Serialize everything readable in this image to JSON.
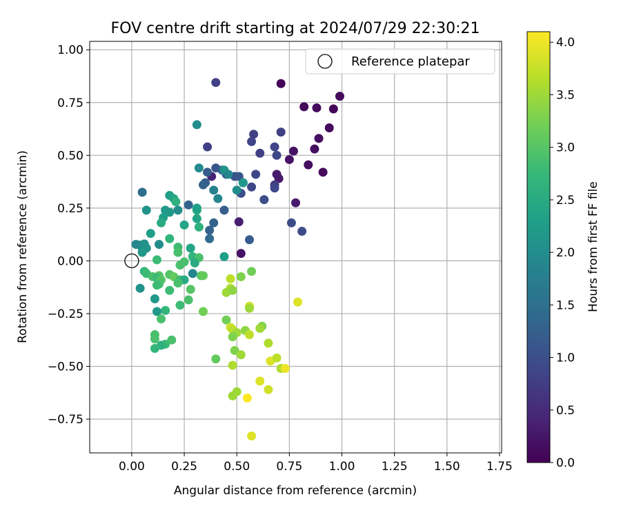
{
  "chart_data": {
    "type": "scatter",
    "title": "FOV centre drift starting at 2024/07/29 22:30:21",
    "xlabel": "Angular distance from reference (arcmin)",
    "ylabel": "Rotation from reference (arcmin)",
    "xlim": [
      -0.2,
      1.76
    ],
    "ylim": [
      -0.91,
      1.04
    ],
    "xticks": [
      0.0,
      0.25,
      0.5,
      0.75,
      1.0,
      1.25,
      1.5,
      1.75
    ],
    "xtick_labels": [
      "0.00",
      "0.25",
      "0.50",
      "0.75",
      "1.00",
      "1.25",
      "1.50",
      "1.75"
    ],
    "yticks": [
      -0.75,
      -0.5,
      -0.25,
      0.0,
      0.25,
      0.5,
      0.75,
      1.0
    ],
    "ytick_labels": [
      "−0.75",
      "−0.50",
      "−0.25",
      "0.00",
      "0.25",
      "0.50",
      "0.75",
      "1.00"
    ],
    "grid": true,
    "legend": {
      "label": "Reference platepar",
      "placement": "top-right"
    },
    "reference_point": {
      "x": 0.0,
      "y": 0.0
    },
    "colorbar": {
      "label": "Hours from first FF file",
      "range": [
        0.0,
        4.1
      ],
      "ticks": [
        0.0,
        0.5,
        1.0,
        1.5,
        2.0,
        2.5,
        3.0,
        3.5,
        4.0
      ],
      "tick_labels": [
        "0.0",
        "0.5",
        "1.0",
        "1.5",
        "2.0",
        "2.5",
        "3.0",
        "3.5",
        "4.0"
      ],
      "colormap": "viridis"
    },
    "points": [
      {
        "x": 0.71,
        "y": 0.84,
        "c": 0.05
      },
      {
        "x": 0.99,
        "y": 0.78,
        "c": 0.1
      },
      {
        "x": 0.82,
        "y": 0.73,
        "c": 0.1
      },
      {
        "x": 0.88,
        "y": 0.725,
        "c": 0.1
      },
      {
        "x": 0.96,
        "y": 0.72,
        "c": 0.05
      },
      {
        "x": 0.94,
        "y": 0.63,
        "c": 0.1
      },
      {
        "x": 0.89,
        "y": 0.58,
        "c": 0.15
      },
      {
        "x": 0.87,
        "y": 0.53,
        "c": 0.15
      },
      {
        "x": 0.77,
        "y": 0.52,
        "c": 0.2
      },
      {
        "x": 0.75,
        "y": 0.48,
        "c": 0.2
      },
      {
        "x": 0.84,
        "y": 0.455,
        "c": 0.15
      },
      {
        "x": 0.91,
        "y": 0.42,
        "c": 0.1
      },
      {
        "x": 0.69,
        "y": 0.41,
        "c": 0.3
      },
      {
        "x": 0.7,
        "y": 0.39,
        "c": 0.3
      },
      {
        "x": 0.78,
        "y": 0.275,
        "c": 0.3
      },
      {
        "x": 0.51,
        "y": 0.185,
        "c": 0.35
      },
      {
        "x": 0.52,
        "y": 0.035,
        "c": 0.2
      },
      {
        "x": 0.38,
        "y": 0.4,
        "c": 0.4
      },
      {
        "x": 0.4,
        "y": 0.845,
        "c": 0.8
      },
      {
        "x": 0.71,
        "y": 0.61,
        "c": 0.8
      },
      {
        "x": 0.58,
        "y": 0.6,
        "c": 0.8
      },
      {
        "x": 0.57,
        "y": 0.565,
        "c": 0.85
      },
      {
        "x": 0.68,
        "y": 0.54,
        "c": 0.85
      },
      {
        "x": 0.61,
        "y": 0.51,
        "c": 0.8
      },
      {
        "x": 0.36,
        "y": 0.54,
        "c": 0.8
      },
      {
        "x": 0.69,
        "y": 0.5,
        "c": 0.9
      },
      {
        "x": 0.59,
        "y": 0.41,
        "c": 0.9
      },
      {
        "x": 0.68,
        "y": 0.36,
        "c": 0.75
      },
      {
        "x": 0.68,
        "y": 0.345,
        "c": 0.9
      },
      {
        "x": 0.57,
        "y": 0.35,
        "c": 0.9
      },
      {
        "x": 0.52,
        "y": 0.32,
        "c": 1.0
      },
      {
        "x": 0.53,
        "y": 0.37,
        "c": 1.0
      },
      {
        "x": 0.49,
        "y": 0.4,
        "c": 1.0
      },
      {
        "x": 0.51,
        "y": 0.4,
        "c": 1.1
      },
      {
        "x": 0.4,
        "y": 0.44,
        "c": 1.1
      },
      {
        "x": 0.36,
        "y": 0.42,
        "c": 1.2
      },
      {
        "x": 0.45,
        "y": 0.41,
        "c": 1.15
      },
      {
        "x": 0.43,
        "y": 0.43,
        "c": 1.2
      },
      {
        "x": 0.35,
        "y": 0.37,
        "c": 1.2
      },
      {
        "x": 0.34,
        "y": 0.36,
        "c": 1.3
      },
      {
        "x": 0.63,
        "y": 0.29,
        "c": 1.0
      },
      {
        "x": 0.76,
        "y": 0.18,
        "c": 0.95
      },
      {
        "x": 0.81,
        "y": 0.14,
        "c": 0.95
      },
      {
        "x": 0.56,
        "y": 0.1,
        "c": 1.2
      },
      {
        "x": 0.44,
        "y": 0.24,
        "c": 1.2
      },
      {
        "x": 0.39,
        "y": 0.18,
        "c": 1.3
      },
      {
        "x": 0.37,
        "y": 0.145,
        "c": 1.3
      },
      {
        "x": 0.37,
        "y": 0.105,
        "c": 1.4
      },
      {
        "x": 0.27,
        "y": 0.265,
        "c": 1.3
      },
      {
        "x": 0.05,
        "y": 0.325,
        "c": 1.45
      },
      {
        "x": 0.32,
        "y": 0.44,
        "c": 1.95
      },
      {
        "x": 0.44,
        "y": 0.43,
        "c": 2.1
      },
      {
        "x": 0.46,
        "y": 0.41,
        "c": 1.9
      },
      {
        "x": 0.39,
        "y": 0.335,
        "c": 1.8
      },
      {
        "x": 0.41,
        "y": 0.295,
        "c": 1.9
      },
      {
        "x": 0.5,
        "y": 0.335,
        "c": 2.0
      },
      {
        "x": 0.53,
        "y": 0.37,
        "c": 2.2
      },
      {
        "x": 0.31,
        "y": 0.645,
        "c": 2.0
      },
      {
        "x": 0.18,
        "y": 0.31,
        "c": 2.3
      },
      {
        "x": 0.2,
        "y": 0.295,
        "c": 2.4
      },
      {
        "x": 0.21,
        "y": 0.28,
        "c": 2.6
      },
      {
        "x": 0.16,
        "y": 0.24,
        "c": 2.2
      },
      {
        "x": 0.18,
        "y": 0.23,
        "c": 2.2
      },
      {
        "x": 0.07,
        "y": 0.24,
        "c": 2.1
      },
      {
        "x": 0.22,
        "y": 0.24,
        "c": 2.0
      },
      {
        "x": 0.15,
        "y": 0.205,
        "c": 2.3
      },
      {
        "x": 0.14,
        "y": 0.18,
        "c": 2.5
      },
      {
        "x": 0.25,
        "y": 0.17,
        "c": 2.4
      },
      {
        "x": 0.31,
        "y": 0.24,
        "c": 2.5
      },
      {
        "x": 0.31,
        "y": 0.25,
        "c": 2.3
      },
      {
        "x": 0.31,
        "y": 0.2,
        "c": 2.4
      },
      {
        "x": 0.32,
        "y": 0.16,
        "c": 2.6
      },
      {
        "x": 0.09,
        "y": 0.13,
        "c": 2.3
      },
      {
        "x": 0.04,
        "y": 0.075,
        "c": 1.9
      },
      {
        "x": 0.06,
        "y": 0.08,
        "c": 2.1
      },
      {
        "x": 0.02,
        "y": 0.078,
        "c": 1.9
      },
      {
        "x": 0.05,
        "y": 0.06,
        "c": 2.0
      },
      {
        "x": 0.07,
        "y": 0.06,
        "c": 2.1
      },
      {
        "x": 0.13,
        "y": 0.078,
        "c": 2.0
      },
      {
        "x": 0.18,
        "y": 0.105,
        "c": 2.7
      },
      {
        "x": 0.05,
        "y": 0.04,
        "c": 2.2
      },
      {
        "x": 0.28,
        "y": 0.06,
        "c": 2.4
      },
      {
        "x": 0.22,
        "y": 0.065,
        "c": 2.8
      },
      {
        "x": 0.22,
        "y": 0.04,
        "c": 2.9
      },
      {
        "x": 0.29,
        "y": 0.02,
        "c": 2.7
      },
      {
        "x": 0.32,
        "y": 0.015,
        "c": 2.9
      },
      {
        "x": 0.44,
        "y": 0.02,
        "c": 2.3
      },
      {
        "x": 0.12,
        "y": 0.005,
        "c": 2.8
      },
      {
        "x": 0.25,
        "y": -0.005,
        "c": 2.9
      },
      {
        "x": 0.3,
        "y": -0.01,
        "c": 2.5
      },
      {
        "x": 0.23,
        "y": -0.02,
        "c": 2.9
      },
      {
        "x": 0.06,
        "y": -0.05,
        "c": 2.7
      },
      {
        "x": 0.07,
        "y": -0.06,
        "c": 2.8
      },
      {
        "x": 0.13,
        "y": -0.07,
        "c": 3.0
      },
      {
        "x": 0.1,
        "y": -0.075,
        "c": 2.9
      },
      {
        "x": 0.12,
        "y": -0.08,
        "c": 2.8
      },
      {
        "x": 0.14,
        "y": -0.09,
        "c": 3.0
      },
      {
        "x": 0.18,
        "y": -0.065,
        "c": 3.0
      },
      {
        "x": 0.2,
        "y": -0.075,
        "c": 3.1
      },
      {
        "x": 0.23,
        "y": -0.09,
        "c": 2.8
      },
      {
        "x": 0.25,
        "y": -0.09,
        "c": 2.5
      },
      {
        "x": 0.29,
        "y": -0.06,
        "c": 1.9
      },
      {
        "x": 0.33,
        "y": -0.07,
        "c": 3.0
      },
      {
        "x": 0.34,
        "y": -0.07,
        "c": 3.1
      },
      {
        "x": 0.22,
        "y": -0.105,
        "c": 2.9
      },
      {
        "x": 0.13,
        "y": -0.11,
        "c": 2.9
      },
      {
        "x": 0.12,
        "y": -0.115,
        "c": 2.8
      },
      {
        "x": 0.04,
        "y": -0.13,
        "c": 2.1
      },
      {
        "x": 0.18,
        "y": -0.14,
        "c": 2.8
      },
      {
        "x": 0.28,
        "y": -0.135,
        "c": 3.0
      },
      {
        "x": 0.11,
        "y": -0.18,
        "c": 2.2
      },
      {
        "x": 0.27,
        "y": -0.185,
        "c": 2.9
      },
      {
        "x": 0.23,
        "y": -0.21,
        "c": 2.8
      },
      {
        "x": 0.16,
        "y": -0.235,
        "c": 2.7
      },
      {
        "x": 0.12,
        "y": -0.24,
        "c": 2.2
      },
      {
        "x": 0.14,
        "y": -0.275,
        "c": 2.9
      },
      {
        "x": 0.34,
        "y": -0.24,
        "c": 3.2
      },
      {
        "x": 0.11,
        "y": -0.35,
        "c": 2.9
      },
      {
        "x": 0.11,
        "y": -0.37,
        "c": 2.9
      },
      {
        "x": 0.19,
        "y": -0.375,
        "c": 2.9
      },
      {
        "x": 0.16,
        "y": -0.395,
        "c": 2.8
      },
      {
        "x": 0.14,
        "y": -0.4,
        "c": 2.6
      },
      {
        "x": 0.11,
        "y": -0.415,
        "c": 2.7
      },
      {
        "x": 0.4,
        "y": -0.465,
        "c": 3.1
      },
      {
        "x": 0.57,
        "y": -0.05,
        "c": 3.2
      },
      {
        "x": 0.52,
        "y": -0.075,
        "c": 3.3
      },
      {
        "x": 0.47,
        "y": -0.085,
        "c": 3.7
      },
      {
        "x": 0.47,
        "y": -0.13,
        "c": 3.6
      },
      {
        "x": 0.45,
        "y": -0.15,
        "c": 3.5
      },
      {
        "x": 0.48,
        "y": -0.14,
        "c": 3.4
      },
      {
        "x": 0.79,
        "y": -0.195,
        "c": 3.9
      },
      {
        "x": 0.56,
        "y": -0.215,
        "c": 3.8
      },
      {
        "x": 0.56,
        "y": -0.225,
        "c": 3.5
      },
      {
        "x": 0.45,
        "y": -0.28,
        "c": 3.2
      },
      {
        "x": 0.47,
        "y": -0.315,
        "c": 3.8
      },
      {
        "x": 0.48,
        "y": -0.325,
        "c": 3.7
      },
      {
        "x": 0.62,
        "y": -0.31,
        "c": 3.3
      },
      {
        "x": 0.61,
        "y": -0.32,
        "c": 3.5
      },
      {
        "x": 0.54,
        "y": -0.33,
        "c": 3.4
      },
      {
        "x": 0.5,
        "y": -0.34,
        "c": 3.5
      },
      {
        "x": 0.48,
        "y": -0.36,
        "c": 3.3
      },
      {
        "x": 0.56,
        "y": -0.35,
        "c": 3.7
      },
      {
        "x": 0.65,
        "y": -0.39,
        "c": 3.6
      },
      {
        "x": 0.49,
        "y": -0.425,
        "c": 3.3
      },
      {
        "x": 0.52,
        "y": -0.445,
        "c": 3.5
      },
      {
        "x": 0.66,
        "y": -0.475,
        "c": 3.9
      },
      {
        "x": 0.69,
        "y": -0.46,
        "c": 3.7
      },
      {
        "x": 0.48,
        "y": -0.495,
        "c": 3.6
      },
      {
        "x": 0.71,
        "y": -0.51,
        "c": 3.6
      },
      {
        "x": 0.73,
        "y": -0.51,
        "c": 4.0
      },
      {
        "x": 0.61,
        "y": -0.57,
        "c": 3.9
      },
      {
        "x": 0.65,
        "y": -0.61,
        "c": 3.8
      },
      {
        "x": 0.5,
        "y": -0.62,
        "c": 3.5
      },
      {
        "x": 0.48,
        "y": -0.64,
        "c": 3.5
      },
      {
        "x": 0.55,
        "y": -0.65,
        "c": 4.1
      },
      {
        "x": 0.57,
        "y": -0.83,
        "c": 3.9
      }
    ]
  }
}
